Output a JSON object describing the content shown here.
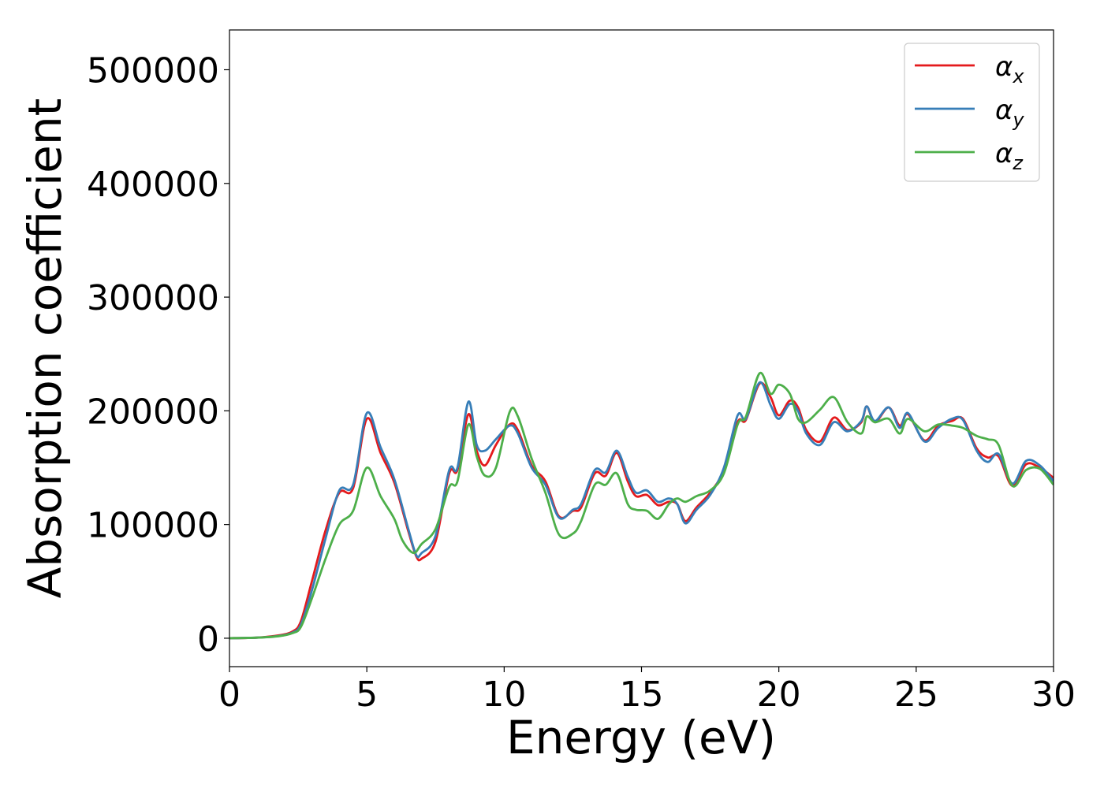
{
  "chart_data": {
    "type": "line",
    "title": "",
    "xlabel": "Energy (eV)",
    "ylabel": "Absorption coefficient",
    "xlim": [
      0,
      30
    ],
    "ylim": [
      -25000,
      535000
    ],
    "xticks": [
      0,
      5,
      10,
      15,
      20,
      25,
      30
    ],
    "xtick_labels": [
      "0",
      "5",
      "10",
      "15",
      "20",
      "25",
      "30"
    ],
    "yticks": [
      0,
      100000,
      200000,
      300000,
      400000,
      500000
    ],
    "ytick_labels": [
      "0",
      "100000",
      "200000",
      "300000",
      "400000",
      "500000"
    ],
    "grid": false,
    "legend_position": "top-right",
    "series": [
      {
        "name": "α_x",
        "label_base": "α",
        "label_sub": "x",
        "color": "#e41a1c",
        "points": [
          [
            0,
            0
          ],
          [
            1,
            500
          ],
          [
            1.8,
            2500
          ],
          [
            2.3,
            6000
          ],
          [
            2.6,
            15000
          ],
          [
            3.0,
            50000
          ],
          [
            3.5,
            95000
          ],
          [
            4.0,
            128000
          ],
          [
            4.5,
            132000
          ],
          [
            5.0,
            193000
          ],
          [
            5.5,
            163000
          ],
          [
            6.0,
            137000
          ],
          [
            6.5,
            95000
          ],
          [
            6.8,
            72000
          ],
          [
            7.0,
            70000
          ],
          [
            7.5,
            85000
          ],
          [
            8.0,
            145000
          ],
          [
            8.3,
            148000
          ],
          [
            8.7,
            197000
          ],
          [
            9.0,
            165000
          ],
          [
            9.3,
            152000
          ],
          [
            9.7,
            170000
          ],
          [
            10.2,
            188000
          ],
          [
            10.5,
            183000
          ],
          [
            11.0,
            152000
          ],
          [
            11.5,
            138000
          ],
          [
            12.0,
            107000
          ],
          [
            12.5,
            112000
          ],
          [
            12.8,
            115000
          ],
          [
            13.3,
            145000
          ],
          [
            13.7,
            143000
          ],
          [
            14.1,
            163000
          ],
          [
            14.5,
            138000
          ],
          [
            14.8,
            125000
          ],
          [
            15.2,
            126000
          ],
          [
            15.6,
            117000
          ],
          [
            16.0,
            120000
          ],
          [
            16.3,
            118000
          ],
          [
            16.6,
            103000
          ],
          [
            17.0,
            115000
          ],
          [
            17.5,
            128000
          ],
          [
            18.0,
            148000
          ],
          [
            18.5,
            190000
          ],
          [
            18.8,
            192000
          ],
          [
            19.3,
            224000
          ],
          [
            19.7,
            212000
          ],
          [
            20.0,
            196000
          ],
          [
            20.4,
            209000
          ],
          [
            20.7,
            203000
          ],
          [
            21.0,
            183000
          ],
          [
            21.5,
            173000
          ],
          [
            22.0,
            194000
          ],
          [
            22.5,
            183000
          ],
          [
            23.0,
            190000
          ],
          [
            23.2,
            204000
          ],
          [
            23.5,
            190000
          ],
          [
            24.0,
            203000
          ],
          [
            24.4,
            187000
          ],
          [
            24.7,
            197000
          ],
          [
            25.3,
            174000
          ],
          [
            25.8,
            187000
          ],
          [
            26.3,
            191000
          ],
          [
            26.7,
            193000
          ],
          [
            27.2,
            167000
          ],
          [
            27.6,
            159000
          ],
          [
            28.0,
            160000
          ],
          [
            28.5,
            134000
          ],
          [
            29.0,
            153000
          ],
          [
            29.5,
            150000
          ],
          [
            30.0,
            141000
          ]
        ]
      },
      {
        "name": "α_y",
        "label_base": "α",
        "label_sub": "y",
        "color": "#377eb8",
        "points": [
          [
            0,
            0
          ],
          [
            1,
            500
          ],
          [
            1.8,
            2000
          ],
          [
            2.3,
            5000
          ],
          [
            2.6,
            12000
          ],
          [
            3.0,
            42000
          ],
          [
            3.5,
            88000
          ],
          [
            4.0,
            130000
          ],
          [
            4.5,
            135000
          ],
          [
            5.0,
            198000
          ],
          [
            5.5,
            168000
          ],
          [
            6.0,
            140000
          ],
          [
            6.5,
            97000
          ],
          [
            6.8,
            73000
          ],
          [
            7.0,
            75000
          ],
          [
            7.5,
            90000
          ],
          [
            8.0,
            148000
          ],
          [
            8.3,
            150000
          ],
          [
            8.7,
            208000
          ],
          [
            9.0,
            170000
          ],
          [
            9.3,
            165000
          ],
          [
            9.7,
            175000
          ],
          [
            10.2,
            187000
          ],
          [
            10.5,
            180000
          ],
          [
            11.0,
            150000
          ],
          [
            11.5,
            135000
          ],
          [
            12.0,
            106000
          ],
          [
            12.5,
            113000
          ],
          [
            12.8,
            118000
          ],
          [
            13.3,
            148000
          ],
          [
            13.7,
            146000
          ],
          [
            14.1,
            165000
          ],
          [
            14.5,
            142000
          ],
          [
            14.8,
            128000
          ],
          [
            15.2,
            130000
          ],
          [
            15.6,
            120000
          ],
          [
            16.0,
            123000
          ],
          [
            16.3,
            118000
          ],
          [
            16.6,
            101000
          ],
          [
            17.0,
            113000
          ],
          [
            17.5,
            126000
          ],
          [
            18.0,
            150000
          ],
          [
            18.5,
            196000
          ],
          [
            18.8,
            193000
          ],
          [
            19.3,
            225000
          ],
          [
            19.7,
            205000
          ],
          [
            20.0,
            193000
          ],
          [
            20.4,
            206000
          ],
          [
            20.7,
            200000
          ],
          [
            21.0,
            180000
          ],
          [
            21.5,
            170000
          ],
          [
            22.0,
            190000
          ],
          [
            22.5,
            182000
          ],
          [
            23.0,
            191000
          ],
          [
            23.2,
            204000
          ],
          [
            23.5,
            191000
          ],
          [
            24.0,
            203000
          ],
          [
            24.4,
            185000
          ],
          [
            24.7,
            198000
          ],
          [
            25.3,
            173000
          ],
          [
            25.8,
            185000
          ],
          [
            26.3,
            193000
          ],
          [
            26.7,
            192000
          ],
          [
            27.2,
            165000
          ],
          [
            27.6,
            155000
          ],
          [
            28.0,
            162000
          ],
          [
            28.5,
            136000
          ],
          [
            29.0,
            156000
          ],
          [
            29.5,
            152000
          ],
          [
            30.0,
            138000
          ]
        ]
      },
      {
        "name": "α_z",
        "label_base": "α",
        "label_sub": "z",
        "color": "#4daf4a",
        "points": [
          [
            0,
            0
          ],
          [
            1,
            500
          ],
          [
            1.8,
            1800
          ],
          [
            2.3,
            4500
          ],
          [
            2.6,
            10000
          ],
          [
            3.0,
            35000
          ],
          [
            3.5,
            70000
          ],
          [
            4.0,
            100000
          ],
          [
            4.5,
            112000
          ],
          [
            5.0,
            150000
          ],
          [
            5.5,
            125000
          ],
          [
            6.0,
            105000
          ],
          [
            6.3,
            86000
          ],
          [
            6.7,
            75000
          ],
          [
            7.0,
            83000
          ],
          [
            7.5,
            96000
          ],
          [
            8.0,
            133000
          ],
          [
            8.3,
            138000
          ],
          [
            8.7,
            188000
          ],
          [
            9.0,
            160000
          ],
          [
            9.3,
            143000
          ],
          [
            9.7,
            150000
          ],
          [
            10.2,
            199000
          ],
          [
            10.5,
            195000
          ],
          [
            11.0,
            158000
          ],
          [
            11.5,
            128000
          ],
          [
            12.0,
            91000
          ],
          [
            12.5,
            92000
          ],
          [
            12.8,
            103000
          ],
          [
            13.3,
            135000
          ],
          [
            13.7,
            135000
          ],
          [
            14.1,
            145000
          ],
          [
            14.5,
            118000
          ],
          [
            14.8,
            113000
          ],
          [
            15.2,
            112000
          ],
          [
            15.6,
            105000
          ],
          [
            16.0,
            118000
          ],
          [
            16.3,
            123000
          ],
          [
            16.6,
            120000
          ],
          [
            17.0,
            125000
          ],
          [
            17.5,
            130000
          ],
          [
            18.0,
            145000
          ],
          [
            18.5,
            188000
          ],
          [
            18.8,
            195000
          ],
          [
            19.3,
            233000
          ],
          [
            19.7,
            215000
          ],
          [
            20.0,
            223000
          ],
          [
            20.4,
            215000
          ],
          [
            20.7,
            193000
          ],
          [
            21.0,
            190000
          ],
          [
            21.5,
            201000
          ],
          [
            22.0,
            212000
          ],
          [
            22.5,
            190000
          ],
          [
            23.0,
            180000
          ],
          [
            23.2,
            195000
          ],
          [
            23.5,
            190000
          ],
          [
            24.0,
            193000
          ],
          [
            24.4,
            180000
          ],
          [
            24.7,
            193000
          ],
          [
            25.3,
            182000
          ],
          [
            25.8,
            188000
          ],
          [
            26.3,
            187000
          ],
          [
            26.7,
            185000
          ],
          [
            27.2,
            178000
          ],
          [
            27.6,
            175000
          ],
          [
            28.0,
            170000
          ],
          [
            28.5,
            134000
          ],
          [
            29.0,
            148000
          ],
          [
            29.5,
            149000
          ],
          [
            30.0,
            135000
          ]
        ]
      }
    ]
  }
}
